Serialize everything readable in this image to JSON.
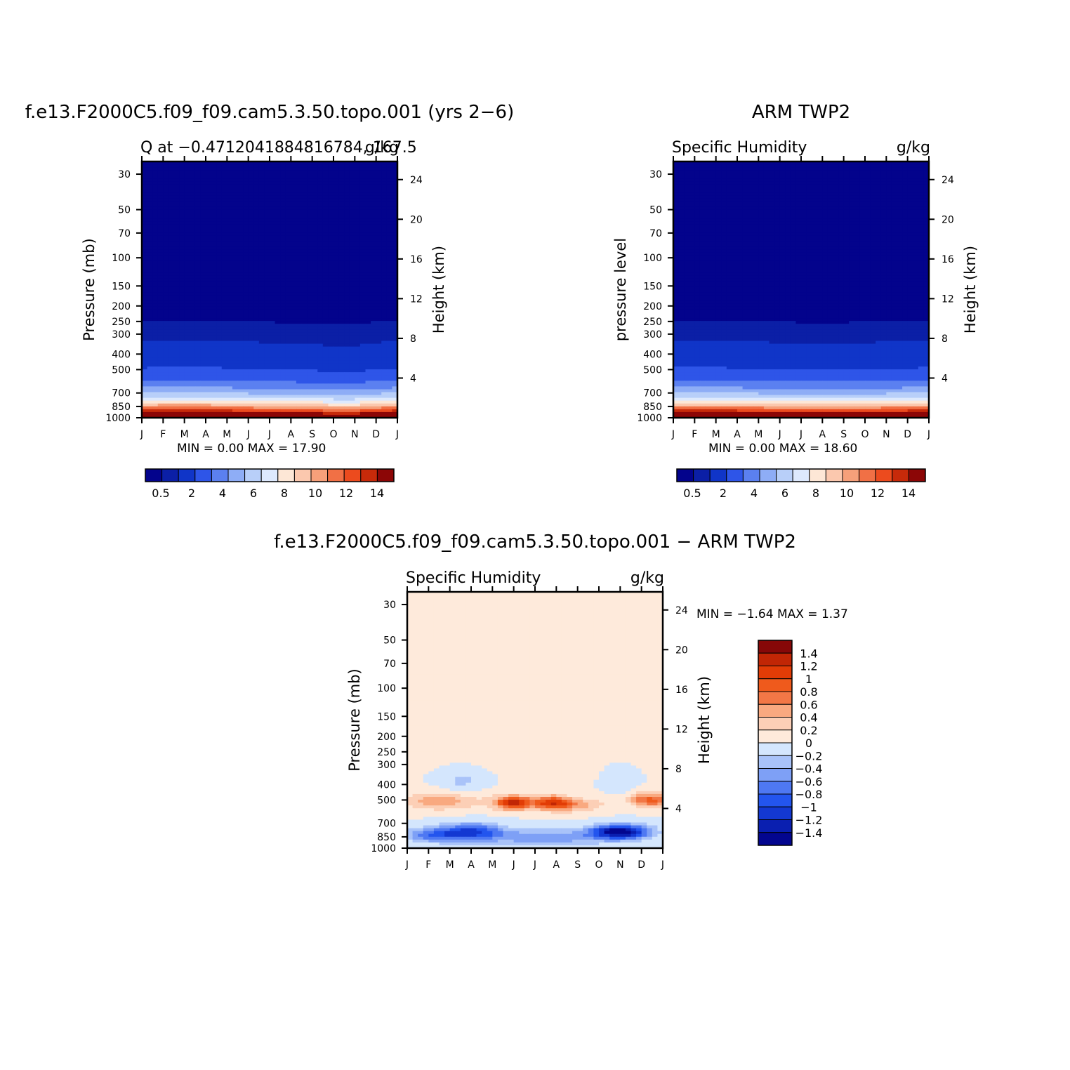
{
  "chart_data": [
    {
      "type": "heatmap",
      "title": "f.e13.F2000C5.f09_f09.cam5.3.50.topo.001 (yrs 2−6)",
      "left_string": "Q at −0.4712041884816784, 167.5",
      "right_string": "g/kg",
      "ylabel": "Pressure (mb)",
      "ylabel_right": "Height (km)",
      "x_ticks": [
        "J",
        "F",
        "M",
        "A",
        "M",
        "J",
        "J",
        "A",
        "S",
        "O",
        "N",
        "D",
        "J"
      ],
      "y_ticks": [
        "30",
        "50",
        "70",
        "100",
        "150",
        "200",
        "250",
        "300",
        "400",
        "500",
        "700",
        "850",
        "1000"
      ],
      "y_ticks_right": [
        "24",
        "20",
        "16",
        "12",
        "8",
        "4"
      ],
      "ylim": [
        1000,
        25
      ],
      "y_scale": "log",
      "minmax_text": "MIN =     0.00  MAX =     17.90",
      "min": 0.0,
      "max": 17.9,
      "colorbar_ticks": [
        "0.5",
        "2",
        "4",
        "6",
        "8",
        "10",
        "12",
        "14"
      ]
    },
    {
      "type": "heatmap",
      "title": "ARM TWP2",
      "left_string": "Specific Humidity",
      "right_string": "g/kg",
      "ylabel": "pressure level",
      "ylabel_right": "Height (km)",
      "x_ticks": [
        "J",
        "F",
        "M",
        "A",
        "M",
        "J",
        "J",
        "A",
        "S",
        "O",
        "N",
        "D",
        "J"
      ],
      "y_ticks": [
        "30",
        "50",
        "70",
        "100",
        "150",
        "200",
        "250",
        "300",
        "400",
        "500",
        "700",
        "850",
        "1000"
      ],
      "y_ticks_right": [
        "24",
        "20",
        "16",
        "12",
        "8",
        "4"
      ],
      "ylim": [
        1000,
        25
      ],
      "y_scale": "log",
      "minmax_text": "MIN =     0.00  MAX =     18.60",
      "min": 0.0,
      "max": 18.6,
      "colorbar_ticks": [
        "0.5",
        "2",
        "4",
        "6",
        "8",
        "10",
        "12",
        "14"
      ]
    },
    {
      "type": "heatmap",
      "title": "f.e13.F2000C5.f09_f09.cam5.3.50.topo.001 − ARM TWP2",
      "left_string": "Specific Humidity",
      "right_string": "g/kg",
      "ylabel": "Pressure (mb)",
      "ylabel_right": "Height (km)",
      "x_ticks": [
        "J",
        "F",
        "M",
        "A",
        "M",
        "J",
        "J",
        "A",
        "S",
        "O",
        "N",
        "D",
        "J"
      ],
      "y_ticks": [
        "30",
        "50",
        "70",
        "100",
        "150",
        "200",
        "250",
        "300",
        "400",
        "500",
        "700",
        "850",
        "1000"
      ],
      "y_ticks_right": [
        "24",
        "20",
        "16",
        "12",
        "8",
        "4"
      ],
      "ylim": [
        1000,
        25
      ],
      "y_scale": "log",
      "minmax_text": "MIN =     −1.64  MAX =     1.37",
      "min": -1.64,
      "max": 1.37,
      "colorbar_ticks": [
        "1.4",
        "1.2",
        "1",
        "0.8",
        "0.6",
        "0.4",
        "0.2",
        "0",
        "−0.2",
        "−0.4",
        "−0.6",
        "−0.8",
        "−1",
        "−1.2",
        "−1.4"
      ]
    }
  ],
  "colors": {
    "abs_scale": [
      "#03038c",
      "#0b1fa6",
      "#1035c8",
      "#2e55e8",
      "#5b80f0",
      "#8eadf6",
      "#b8cff9",
      "#dde9fd",
      "#fde7d6",
      "#fbc8ae",
      "#f6a07a",
      "#f17045",
      "#ec4b1e",
      "#c72a0a",
      "#8c0606"
    ],
    "diff_scale": [
      "#03068f",
      "#0a1fb0",
      "#1338d2",
      "#2355ee",
      "#4e78f2",
      "#7ea0f6",
      "#a9c3f9",
      "#d4e6fd",
      "#feeadb",
      "#fccfb6",
      "#f9a980",
      "#f27746",
      "#ef5a1c",
      "#e23c06",
      "#c12605",
      "#860808"
    ],
    "diff_background": "#d4e6fd"
  }
}
